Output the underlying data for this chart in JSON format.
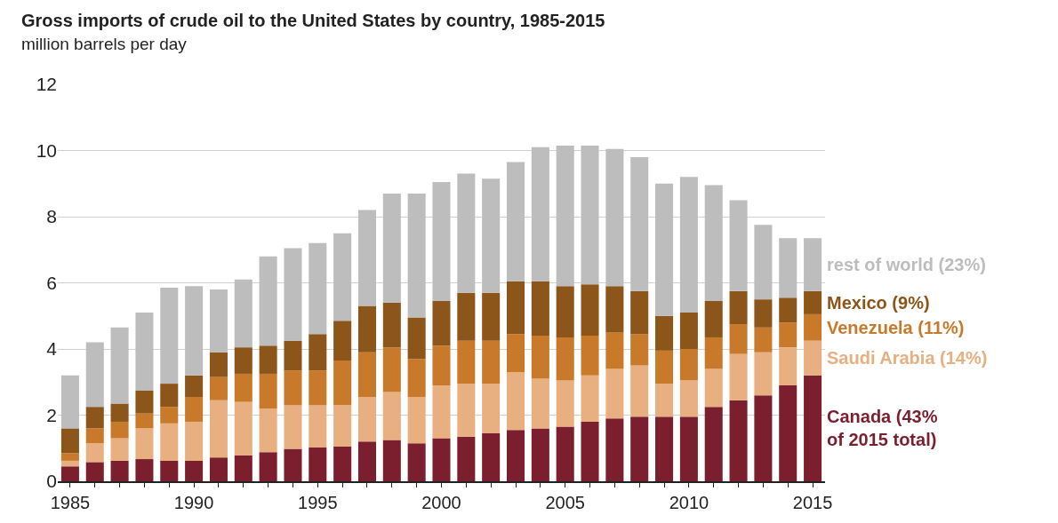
{
  "chart_data": {
    "type": "bar",
    "stacked": true,
    "title": "Gross imports of crude oil to the United States by country, 1985-2015",
    "subtitle": "million barrels per day",
    "x": [
      1985,
      1986,
      1987,
      1988,
      1989,
      1990,
      1991,
      1992,
      1993,
      1994,
      1995,
      1996,
      1997,
      1998,
      1999,
      2000,
      2001,
      2002,
      2003,
      2004,
      2005,
      2006,
      2007,
      2008,
      2009,
      2010,
      2011,
      2012,
      2013,
      2014,
      2015
    ],
    "series": [
      {
        "name": "Canada (43%\nof 2015 total)",
        "color": "#7b1f2e",
        "values": [
          0.45,
          0.58,
          0.62,
          0.67,
          0.62,
          0.62,
          0.72,
          0.78,
          0.88,
          0.98,
          1.03,
          1.05,
          1.2,
          1.25,
          1.15,
          1.3,
          1.35,
          1.45,
          1.55,
          1.6,
          1.65,
          1.8,
          1.9,
          1.95,
          1.95,
          1.95,
          2.25,
          2.45,
          2.6,
          2.9,
          3.2
        ]
      },
      {
        "name": "Saudi Arabia (14%)",
        "color": "#e8b080",
        "values": [
          0.17,
          0.57,
          0.68,
          0.93,
          1.13,
          1.18,
          1.73,
          1.62,
          1.32,
          1.32,
          1.27,
          1.25,
          1.35,
          1.45,
          1.4,
          1.6,
          1.6,
          1.5,
          1.75,
          1.5,
          1.4,
          1.4,
          1.5,
          1.55,
          1.0,
          1.1,
          1.15,
          1.4,
          1.3,
          1.15,
          1.05
        ]
      },
      {
        "name": "Venezuela (11%)",
        "color": "#c87a2a",
        "values": [
          0.23,
          0.45,
          0.5,
          0.45,
          0.5,
          0.75,
          0.7,
          0.85,
          1.05,
          1.05,
          1.05,
          1.35,
          1.35,
          1.35,
          1.15,
          1.2,
          1.3,
          1.3,
          1.15,
          1.3,
          1.3,
          1.2,
          1.1,
          0.95,
          1.0,
          0.95,
          0.95,
          0.9,
          0.75,
          0.75,
          0.8
        ]
      },
      {
        "name": "Mexico (9%)",
        "color": "#8c5519",
        "values": [
          0.75,
          0.65,
          0.55,
          0.7,
          0.7,
          0.65,
          0.75,
          0.8,
          0.85,
          0.9,
          1.1,
          1.2,
          1.4,
          1.35,
          1.25,
          1.35,
          1.45,
          1.45,
          1.6,
          1.65,
          1.55,
          1.55,
          1.4,
          1.3,
          1.05,
          1.1,
          1.1,
          1.0,
          0.85,
          0.75,
          0.7
        ]
      },
      {
        "name": "rest of world (23%)",
        "color": "#bdbdbd",
        "values": [
          1.6,
          1.95,
          2.3,
          2.35,
          2.9,
          2.7,
          1.9,
          2.05,
          2.7,
          2.8,
          2.75,
          2.65,
          2.9,
          3.3,
          3.75,
          3.6,
          3.6,
          3.45,
          3.6,
          4.05,
          4.25,
          4.2,
          4.15,
          4.05,
          4.0,
          4.1,
          3.5,
          2.75,
          2.25,
          1.8,
          1.6
        ]
      }
    ],
    "xlim": [
      1984.5,
      2015.5
    ],
    "xticks": [
      1985,
      {
        "value": 1986,
        "label": null
      },
      {
        "value": 1987,
        "label": null
      },
      {
        "value": 1988,
        "label": null
      },
      {
        "value": 1989,
        "label": null
      },
      1990,
      {
        "value": 1991,
        "label": null
      },
      {
        "value": 1992,
        "label": null
      },
      {
        "value": 1993,
        "label": null
      },
      {
        "value": 1994,
        "label": null
      },
      1995,
      {
        "value": 1996,
        "label": null
      },
      {
        "value": 1997,
        "label": null
      },
      {
        "value": 1998,
        "label": null
      },
      {
        "value": 1999,
        "label": null
      },
      2000,
      {
        "value": 2001,
        "label": null
      },
      {
        "value": 2002,
        "label": null
      },
      {
        "value": 2003,
        "label": null
      },
      {
        "value": 2004,
        "label": null
      },
      2005,
      {
        "value": 2006,
        "label": null
      },
      {
        "value": 2007,
        "label": null
      },
      {
        "value": 2008,
        "label": null
      },
      {
        "value": 2009,
        "label": null
      },
      2010,
      {
        "value": 2011,
        "label": null
      },
      {
        "value": 2012,
        "label": null
      },
      {
        "value": 2013,
        "label": null
      },
      {
        "value": 2014,
        "label": null
      },
      2015
    ],
    "ylim": [
      0,
      12
    ],
    "yticks": [
      0,
      2,
      4,
      6,
      8,
      10,
      12
    ],
    "grid": "y",
    "legend": false
  }
}
